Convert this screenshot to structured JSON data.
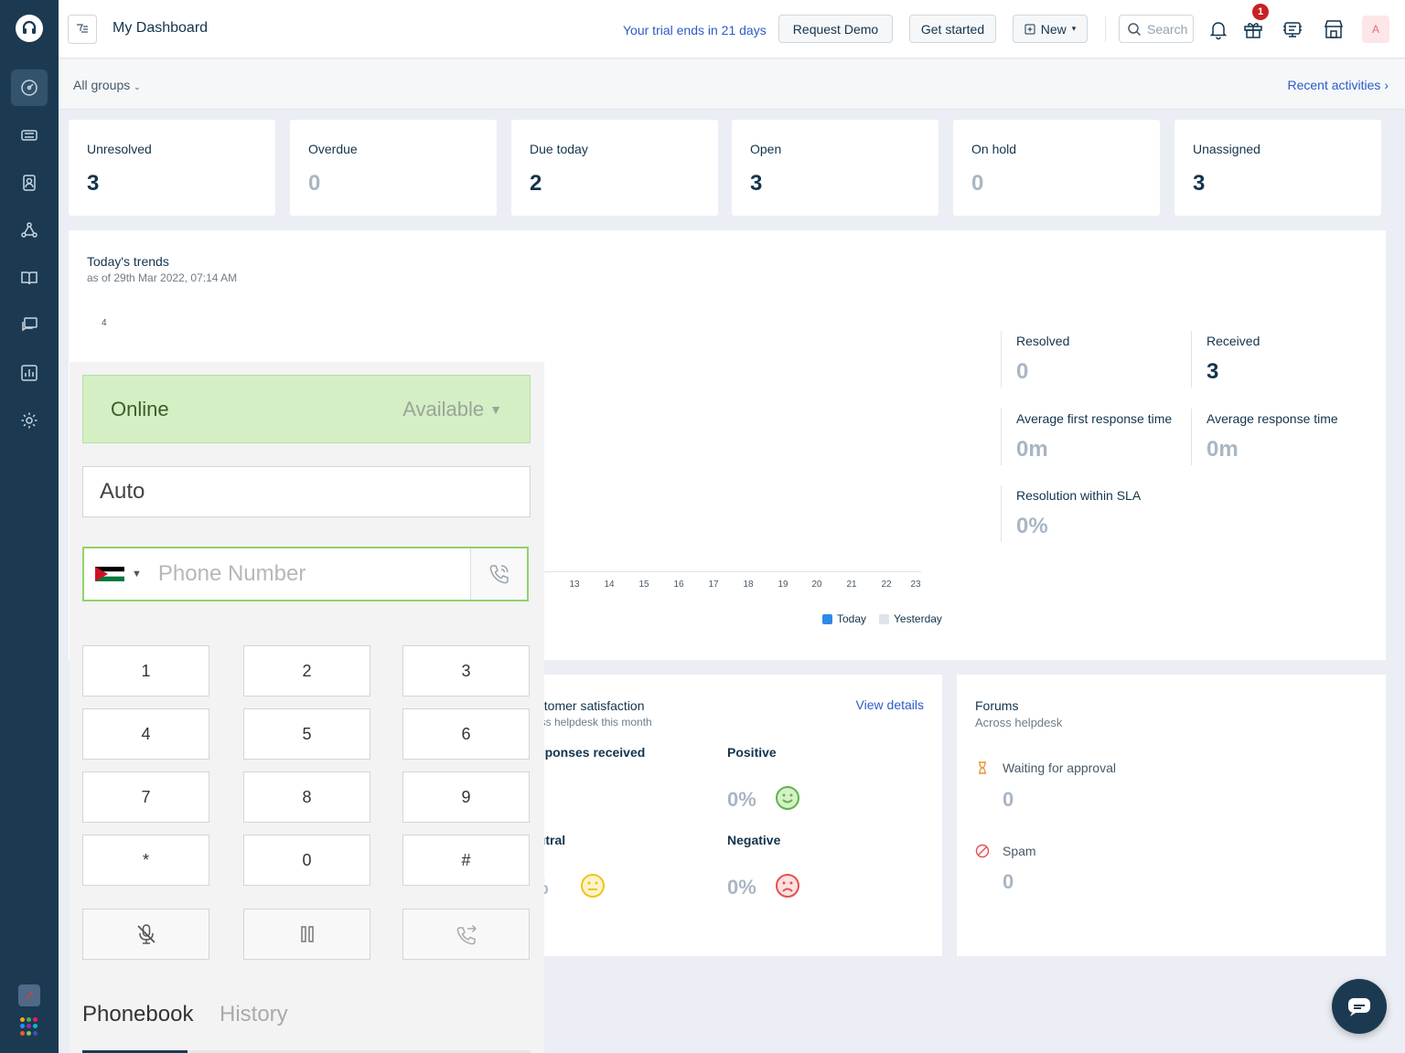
{
  "topbar": {
    "title": "My Dashboard",
    "trial_text": "Your trial ends in 21 days",
    "request_demo": "Request Demo",
    "get_started": "Get started",
    "new_label": "New",
    "search_placeholder": "Search",
    "notification_count": "1",
    "avatar_letter": "A"
  },
  "subbar": {
    "groups_label": "All groups",
    "recent_label": "Recent activities"
  },
  "stats": [
    {
      "label": "Unresolved",
      "value": "3"
    },
    {
      "label": "Overdue",
      "value": "0"
    },
    {
      "label": "Due today",
      "value": "2"
    },
    {
      "label": "Open",
      "value": "3"
    },
    {
      "label": "On hold",
      "value": "0"
    },
    {
      "label": "Unassigned",
      "value": "3"
    }
  ],
  "trends": {
    "title": "Today's trends",
    "subtitle": "as of 29th Mar 2022, 07:14 AM",
    "y_top_label": "4",
    "x_ticks": [
      "13",
      "14",
      "15",
      "16",
      "17",
      "18",
      "19",
      "20",
      "21",
      "22",
      "23"
    ],
    "legend_today": "Today",
    "legend_yesterday": "Yesterday",
    "metrics": {
      "resolved_label": "Resolved",
      "resolved_value": "0",
      "received_label": "Received",
      "received_value": "3",
      "afrt_label": "Average first response time",
      "afrt_value": "0m",
      "art_label": "Average response time",
      "art_value": "0m",
      "sla_label": "Resolution within SLA",
      "sla_value": "0%"
    }
  },
  "satisfaction": {
    "title": "ustomer satisfaction",
    "subtitle": "ross helpdesk this month",
    "view_details": "View details",
    "responses_label": "esponses received",
    "positive_label": "Positive",
    "positive_value": "0%",
    "neutral_label": "eutral",
    "neutral_value": "%",
    "negative_label": "Negative",
    "negative_value": "0%"
  },
  "forums": {
    "title": "Forums",
    "subtitle": "Across helpdesk",
    "waiting_label": "Waiting for approval",
    "waiting_value": "0",
    "spam_label": "Spam",
    "spam_value": "0"
  },
  "phone": {
    "status": "Online",
    "availability": "Available",
    "mode": "Auto",
    "number_placeholder": "Phone Number",
    "keys": [
      "1",
      "2",
      "3",
      "4",
      "5",
      "6",
      "7",
      "8",
      "9",
      "*",
      "0",
      "#"
    ],
    "tab_phonebook": "Phonebook",
    "tab_history": "History"
  },
  "colors": {
    "sidebar": "#1b3a52",
    "accent_link": "#2c5cc5",
    "online_bg": "#d4efc4",
    "zero_value": "#a9b6c3",
    "today_series": "#2c8ae8",
    "yesterday_series": "#dfe4ea"
  }
}
